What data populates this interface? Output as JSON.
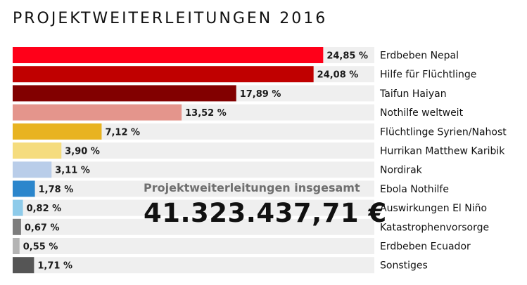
{
  "chart_data": {
    "type": "bar",
    "orientation": "horizontal",
    "title": "PROJEKTWEITERLEITUNGEN 2016",
    "categories": [
      "Erdbeben Nepal",
      "Hilfe für Flüchtlinge",
      "Taifun Haiyan",
      "Nothilfe weltweit",
      "Flüchtlinge Syrien/Nahost",
      "Hurrikan Matthew Karibik",
      "Nordirak",
      "Ebola Nothilfe",
      "Auswirkungen El Niño",
      "Katastrophenvorsorge",
      "Erdbeben Ecuador",
      "Sonstiges"
    ],
    "values": [
      24.85,
      24.08,
      17.89,
      13.52,
      7.12,
      3.9,
      3.11,
      1.78,
      0.82,
      0.67,
      0.55,
      1.71
    ],
    "value_labels": [
      "24,85 %",
      "24,08 %",
      "17,89 %",
      "13,52 %",
      "7,12 %",
      "3,90 %",
      "3,11 %",
      "1,78 %",
      "0,82 %",
      "0,67 %",
      "0,55 %",
      "1,71 %"
    ],
    "colors": [
      "#ff0019",
      "#c00000",
      "#820000",
      "#e4958c",
      "#e8b321",
      "#f5dc7e",
      "#b9cde9",
      "#2b86cc",
      "#8ecbea",
      "#7d7d7d",
      "#b4b4b4",
      "#555555"
    ],
    "background_color": "#efefef",
    "xlim": [
      0,
      25
    ],
    "grid": false,
    "legend": "none"
  },
  "summary": {
    "label": "Projektweiterleitungen insgesamt",
    "value": "41.323.437,71 €"
  }
}
